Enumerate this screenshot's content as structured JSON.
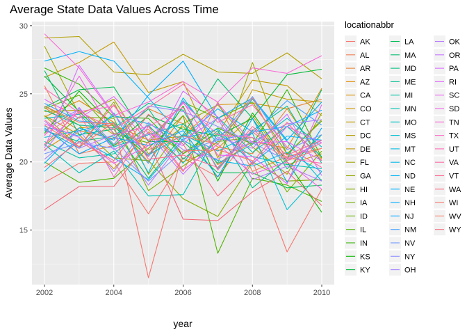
{
  "chart_data": {
    "type": "line",
    "title": "Average State Data Values Across Time",
    "xlabel": "year",
    "ylabel": "Average Data Values",
    "xlim": [
      2002,
      2010
    ],
    "ylim": [
      11.0,
      30.3
    ],
    "x_ticks": [
      2002,
      2004,
      2006,
      2008,
      2010
    ],
    "x_tick_labels": [
      "2002",
      "2004",
      "2006",
      "2008",
      "2010"
    ],
    "y_ticks": [
      15,
      20,
      25,
      30
    ],
    "y_tick_labels": [
      "15",
      "20",
      "25",
      "30"
    ],
    "grid": true,
    "panel_background": "#ebebeb",
    "legend_title": "locationabbr",
    "legend_position": "right",
    "x": [
      2002,
      2003,
      2004,
      2005,
      2006,
      2007,
      2008,
      2009,
      2010
    ],
    "series": [
      {
        "name": "AK",
        "color": "#F8766D",
        "values": [
          18.5,
          19.9,
          20.0,
          16.2,
          20.3,
          18.9,
          22.2,
          20.3,
          21.4
        ]
      },
      {
        "name": "AL",
        "color": "#F27D53",
        "values": [
          25.6,
          20.6,
          21.2,
          22.4,
          19.3,
          24.4,
          19.3,
          20.4,
          21.0
        ]
      },
      {
        "name": "AR",
        "color": "#EA8331",
        "values": [
          24.0,
          22.3,
          21.7,
          23.9,
          22.8,
          21.1,
          20.6,
          23.9,
          24.6
        ]
      },
      {
        "name": "AZ",
        "color": "#E18A00",
        "values": [
          23.3,
          24.5,
          22.9,
          20.0,
          23.4,
          19.8,
          21.5,
          21.0,
          25.4
        ]
      },
      {
        "name": "CA",
        "color": "#D89000",
        "values": [
          20.9,
          22.5,
          22.7,
          21.6,
          21.9,
          24.2,
          24.3,
          23.9,
          20.2
        ]
      },
      {
        "name": "CO",
        "color": "#CD9600",
        "values": [
          23.4,
          22.0,
          19.5,
          22.2,
          20.0,
          21.0,
          23.4,
          19.8,
          20.6
        ]
      },
      {
        "name": "CT",
        "color": "#C19C00",
        "values": [
          23.7,
          23.8,
          22.0,
          22.6,
          20.6,
          22.1,
          26.0,
          25.6,
          23.4
        ]
      },
      {
        "name": "DC",
        "color": "#B3A000",
        "values": [
          29.1,
          29.2,
          26.6,
          26.4,
          27.9,
          26.6,
          26.5,
          28.0,
          26.1
        ]
      },
      {
        "name": "DE",
        "color": "#C49A00",
        "values": [
          26.2,
          27.3,
          28.8,
          25.1,
          25.9,
          20.3,
          25.3,
          24.6,
          24.4
        ]
      },
      {
        "name": "FL",
        "color": "#A3A500",
        "values": [
          28.5,
          23.5,
          24.6,
          20.6,
          22.6,
          19.9,
          27.3,
          20.5,
          23.1
        ]
      },
      {
        "name": "GA",
        "color": "#94AA00",
        "values": [
          23.4,
          21.1,
          24.4,
          19.1,
          22.8,
          24.2,
          21.1,
          19.1,
          23.6
        ]
      },
      {
        "name": "HI",
        "color": "#85AD00",
        "values": [
          24.1,
          22.7,
          20.3,
          20.1,
          17.3,
          16.0,
          20.0,
          18.6,
          18.7
        ]
      },
      {
        "name": "IA",
        "color": "#76B000",
        "values": [
          21.2,
          23.3,
          23.2,
          17.9,
          19.7,
          21.5,
          21.8,
          17.8,
          20.8
        ]
      },
      {
        "name": "ID",
        "color": "#64B200",
        "values": [
          23.9,
          24.9,
          22.1,
          21.4,
          24.4,
          23.2,
          24.4,
          20.6,
          23.0
        ]
      },
      {
        "name": "IL",
        "color": "#4FB400",
        "values": [
          20.0,
          18.5,
          18.8,
          21.0,
          23.4,
          13.3,
          18.8,
          18.3,
          17.1
        ]
      },
      {
        "name": "IN",
        "color": "#32B600",
        "values": [
          26.9,
          25.7,
          23.3,
          23.2,
          20.6,
          22.5,
          21.3,
          25.3,
          20.3
        ]
      },
      {
        "name": "KS",
        "color": "#07B800",
        "values": [
          22.1,
          25.2,
          22.6,
          20.4,
          24.1,
          18.6,
          23.6,
          20.0,
          16.3
        ]
      },
      {
        "name": "KY",
        "color": "#00BA38",
        "values": [
          26.3,
          23.7,
          21.2,
          23.4,
          22.4,
          21.9,
          23.2,
          26.4,
          26.8
        ]
      },
      {
        "name": "LA",
        "color": "#00BC56",
        "values": [
          24.0,
          25.3,
          25.5,
          21.5,
          21.5,
          19.2,
          19.2,
          18.1,
          18.3
        ]
      },
      {
        "name": "MA",
        "color": "#00BD6D",
        "values": [
          26.7,
          22.0,
          22.4,
          18.8,
          22.0,
          26.1,
          23.2,
          19.5,
          22.0
        ]
      },
      {
        "name": "MD",
        "color": "#00BF80",
        "values": [
          22.3,
          21.5,
          21.9,
          23.9,
          20.2,
          22.3,
          18.1,
          20.2,
          25.3
        ]
      },
      {
        "name": "ME",
        "color": "#00C091",
        "values": [
          23.8,
          22.7,
          22.5,
          24.3,
          23.8,
          19.5,
          22.3,
          24.1,
          19.9
        ]
      },
      {
        "name": "MI",
        "color": "#00C0A3",
        "values": [
          21.5,
          20.3,
          20.6,
          22.7,
          19.9,
          23.3,
          20.7,
          22.6,
          20.4
        ]
      },
      {
        "name": "MN",
        "color": "#00C1B3",
        "values": [
          21.3,
          19.2,
          20.8,
          17.5,
          17.6,
          22.1,
          20.4,
          19.8,
          19.5
        ]
      },
      {
        "name": "MO",
        "color": "#00C0C3",
        "values": [
          23.2,
          23.5,
          21.1,
          22.0,
          22.8,
          19.9,
          21.3,
          23.2,
          21.1
        ]
      },
      {
        "name": "MS",
        "color": "#00BFD1",
        "values": [
          21.8,
          22.3,
          22.9,
          20.5,
          22.0,
          20.8,
          22.1,
          16.5,
          19.3
        ]
      },
      {
        "name": "MT",
        "color": "#00BDDF",
        "values": [
          22.4,
          21.0,
          23.6,
          19.2,
          24.7,
          21.3,
          24.6,
          21.5,
          18.6
        ]
      },
      {
        "name": "NC",
        "color": "#00BAEA",
        "values": [
          22.6,
          21.9,
          23.4,
          22.8,
          21.6,
          20.1,
          19.7,
          20.7,
          19.3
        ]
      },
      {
        "name": "ND",
        "color": "#00B6F4",
        "values": [
          19.3,
          21.7,
          20.3,
          18.7,
          21.7,
          22.4,
          19.9,
          21.9,
          21.6
        ]
      },
      {
        "name": "NE",
        "color": "#00B2FC",
        "values": [
          27.4,
          28.1,
          27.4,
          24.7,
          21.8,
          23.9,
          22.2,
          22.6,
          23.8
        ]
      },
      {
        "name": "NH",
        "color": "#00ADFF",
        "values": [
          19.9,
          22.5,
          21.6,
          24.9,
          27.4,
          23.2,
          24.7,
          21.6,
          24.4
        ]
      },
      {
        "name": "NJ",
        "color": "#00A6FF",
        "values": [
          22.5,
          20.6,
          21.8,
          21.2,
          22.3,
          18.9,
          23.2,
          18.5,
          22.5
        ]
      },
      {
        "name": "NM",
        "color": "#3DA0FF",
        "values": [
          24.3,
          23.0,
          22.8,
          19.9,
          24.5,
          21.6,
          22.1,
          24.5,
          22.7
        ]
      },
      {
        "name": "NV",
        "color": "#7097FF",
        "values": [
          20.6,
          21.4,
          21.0,
          18.6,
          20.8,
          21.6,
          24.8,
          20.9,
          22.0
        ]
      },
      {
        "name": "NY",
        "color": "#8E8FFF",
        "values": [
          22.3,
          23.9,
          21.3,
          24.1,
          23.7,
          22.6,
          21.4,
          20.1,
          21.6
        ]
      },
      {
        "name": "OH",
        "color": "#A585FF",
        "values": [
          20.2,
          22.3,
          19.3,
          22.9,
          20.9,
          20.2,
          21.5,
          22.8,
          23.1
        ]
      },
      {
        "name": "OK",
        "color": "#B77BFF",
        "values": [
          23.0,
          21.0,
          22.0,
          18.3,
          21.6,
          23.2,
          18.7,
          19.7,
          18.6
        ]
      },
      {
        "name": "OR",
        "color": "#C774FF",
        "values": [
          20.8,
          24.0,
          20.9,
          22.1,
          19.1,
          21.8,
          21.0,
          23.5,
          19.0
        ]
      },
      {
        "name": "PA",
        "color": "#D66BFF",
        "values": [
          21.0,
          27.1,
          23.5,
          20.4,
          25.2,
          23.3,
          19.8,
          22.6,
          21.4
        ]
      },
      {
        "name": "RI",
        "color": "#E365FC",
        "values": [
          24.6,
          23.2,
          24.8,
          22.1,
          21.2,
          24.3,
          21.4,
          21.5,
          20.1
        ]
      },
      {
        "name": "SC",
        "color": "#EC62F2",
        "values": [
          22.8,
          21.8,
          19.9,
          21.2,
          24.4,
          20.5,
          20.4,
          18.4,
          24.2
        ]
      },
      {
        "name": "SD",
        "color": "#F365E6",
        "values": [
          21.9,
          26.3,
          22.0,
          22.6,
          19.4,
          21.3,
          19.1,
          20.0,
          18.0
        ]
      },
      {
        "name": "TN",
        "color": "#F96AD8",
        "values": [
          29.4,
          26.9,
          23.4,
          24.4,
          25.9,
          24.4,
          26.9,
          26.5,
          27.8
        ]
      },
      {
        "name": "TX",
        "color": "#FD6FC9",
        "values": [
          22.0,
          23.7,
          24.1,
          21.6,
          24.3,
          22.0,
          21.8,
          20.2,
          21.4
        ]
      },
      {
        "name": "UT",
        "color": "#FF6CB8",
        "values": [
          25.4,
          23.6,
          18.9,
          22.6,
          24.0,
          19.4,
          22.4,
          20.3,
          19.9
        ]
      },
      {
        "name": "VA",
        "color": "#FF6AA6",
        "values": [
          21.3,
          23.7,
          22.4,
          24.0,
          25.7,
          22.9,
          24.2,
          21.1,
          19.6
        ]
      },
      {
        "name": "VT",
        "color": "#FF6894",
        "values": [
          23.1,
          21.1,
          24.2,
          20.2,
          20.5,
          19.6,
          22.6,
          20.5,
          21.6
        ]
      },
      {
        "name": "WA",
        "color": "#FC6C81",
        "values": [
          19.6,
          21.5,
          20.1,
          23.5,
          21.3,
          17.5,
          20.0,
          22.9,
          20.1
        ]
      },
      {
        "name": "WI",
        "color": "#F8766D",
        "values": [
          22.7,
          21.1,
          22.9,
          11.5,
          20.8,
          20.9,
          20.1,
          13.4,
          18.0
        ]
      },
      {
        "name": "WV",
        "color": "#F5806A",
        "values": [
          24.1,
          22.9,
          22.8,
          20.9,
          21.9,
          21.3,
          24.7,
          20.1,
          21.0
        ]
      },
      {
        "name": "WY",
        "color": "#F36A78",
        "values": [
          16.5,
          18.2,
          18.2,
          21.5,
          15.8,
          15.7,
          17.8,
          19.3,
          16.8
        ]
      }
    ]
  }
}
